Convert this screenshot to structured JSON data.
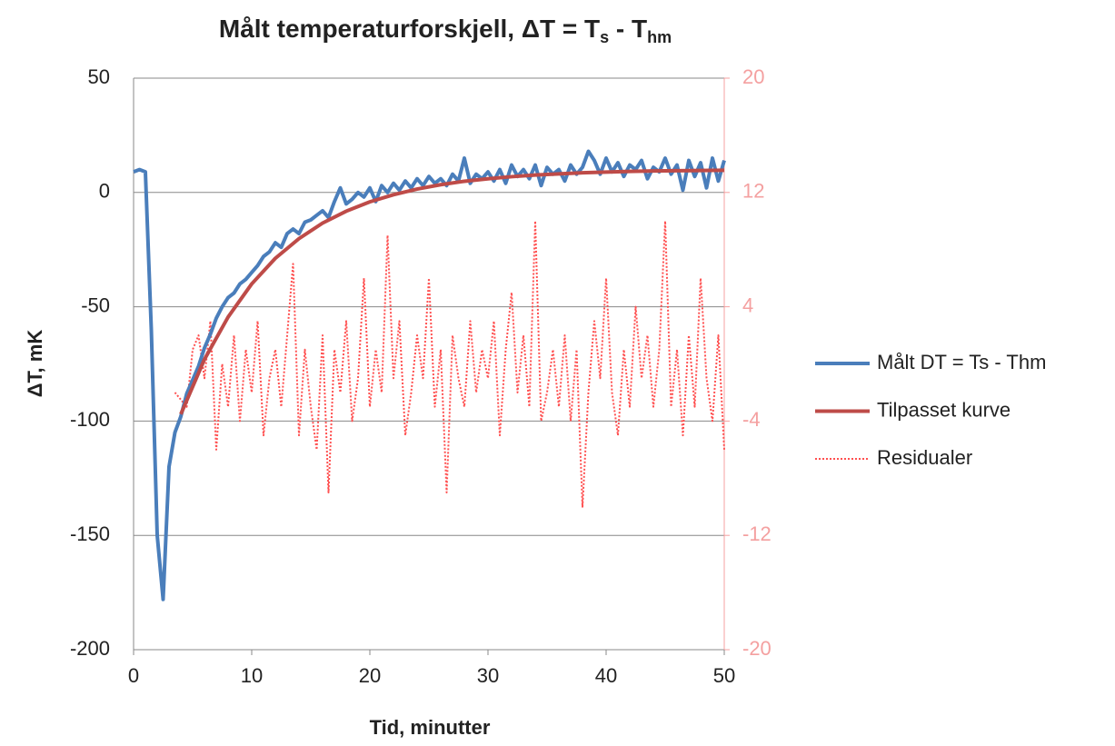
{
  "chart_data": {
    "type": "line",
    "title": [
      "Målt temperaturforskjell, ΔT = T",
      "s",
      " - T",
      "hm"
    ],
    "xlabel": "Tid, minutter",
    "ylabel": "ΔT, mK",
    "xlim": [
      0,
      50
    ],
    "xticks": [
      0,
      10,
      20,
      30,
      40,
      50
    ],
    "ylim": [
      -200,
      50
    ],
    "yticks": [
      -200,
      -150,
      -100,
      -50,
      0,
      50
    ],
    "y2lim": [
      -20,
      20
    ],
    "y2ticks": [
      -20,
      -12,
      -4,
      4,
      12,
      20
    ],
    "grid": true,
    "legend": "right",
    "series": [
      {
        "name": "Målt DT = Ts - Thm",
        "color": "#4a7ebb",
        "style": "solid",
        "x": [
          0,
          0.5,
          1,
          1.5,
          2,
          2.5,
          3,
          3.5,
          4,
          4.5,
          5,
          5.5,
          6,
          6.5,
          7,
          7.5,
          8,
          8.5,
          9,
          9.5,
          10,
          10.5,
          11,
          11.5,
          12,
          12.5,
          13,
          13.5,
          14,
          14.5,
          15,
          15.5,
          16,
          16.5,
          17,
          17.5,
          18,
          18.5,
          19,
          19.5,
          20,
          20.5,
          21,
          21.5,
          22,
          22.5,
          23,
          23.5,
          24,
          24.5,
          25,
          25.5,
          26,
          26.5,
          27,
          27.5,
          28,
          28.5,
          29,
          29.5,
          30,
          30.5,
          31,
          31.5,
          32,
          32.5,
          33,
          33.5,
          34,
          34.5,
          35,
          35.5,
          36,
          36.5,
          37,
          37.5,
          38,
          38.5,
          39,
          39.5,
          40,
          40.5,
          41,
          41.5,
          42,
          42.5,
          43,
          43.5,
          44,
          44.5,
          45,
          45.5,
          46,
          46.5,
          47,
          47.5,
          48,
          48.5,
          49,
          49.5,
          50
        ],
        "values": [
          9,
          10,
          9,
          -60,
          -150,
          -178,
          -120,
          -105,
          -98,
          -88,
          -82,
          -76,
          -68,
          -62,
          -55,
          -50,
          -46,
          -44,
          -40,
          -38,
          -35,
          -32,
          -28,
          -26,
          -22,
          -24,
          -18,
          -16,
          -18,
          -13,
          -12,
          -10,
          -8,
          -11,
          -4,
          2,
          -5,
          -3,
          0,
          -2,
          2,
          -4,
          3,
          0,
          4,
          1,
          5,
          2,
          6,
          3,
          7,
          4,
          6,
          3,
          8,
          5,
          15,
          4,
          8,
          6,
          9,
          5,
          10,
          4,
          12,
          7,
          10,
          6,
          12,
          3,
          11,
          8,
          10,
          5,
          12,
          8,
          11,
          18,
          14,
          8,
          15,
          9,
          13,
          7,
          12,
          10,
          14,
          6,
          11,
          9,
          15,
          8,
          12,
          1,
          14,
          7,
          13,
          2,
          15,
          5,
          14
        ]
      },
      {
        "name": "Tilpasset kurve",
        "color": "#be4b48",
        "style": "solid",
        "x": [
          4,
          6,
          8,
          10,
          12,
          14,
          16,
          18,
          20,
          22,
          24,
          26,
          28,
          30,
          32,
          34,
          36,
          38,
          40,
          42,
          44,
          46,
          48,
          50
        ],
        "values": [
          -97,
          -73,
          -54.5,
          -40,
          -28.8,
          -20.2,
          -13.4,
          -8.2,
          -4.1,
          -1,
          1.5,
          3.4,
          4.9,
          6,
          6.9,
          7.6,
          8.1,
          8.6,
          8.9,
          9.2,
          9.4,
          9.5,
          9.6,
          9.7
        ]
      },
      {
        "name": "Residualer",
        "color": "#ff5050",
        "style": "dotted",
        "axis": "y2",
        "x": [
          3.5,
          4,
          4.5,
          5,
          5.5,
          6,
          6.5,
          7,
          7.5,
          8,
          8.5,
          9,
          9.5,
          10,
          10.5,
          11,
          11.5,
          12,
          12.5,
          13,
          13.5,
          14,
          14.5,
          15,
          15.5,
          16,
          16.5,
          17,
          17.5,
          18,
          18.5,
          19,
          19.5,
          20,
          20.5,
          21,
          21.5,
          22,
          22.5,
          23,
          23.5,
          24,
          24.5,
          25,
          25.5,
          26,
          26.5,
          27,
          27.5,
          28,
          28.5,
          29,
          29.5,
          30,
          30.5,
          31,
          31.5,
          32,
          32.5,
          33,
          33.5,
          34,
          34.5,
          35,
          35.5,
          36,
          36.5,
          37,
          37.5,
          38,
          38.5,
          39,
          39.5,
          40,
          40.5,
          41,
          41.5,
          42,
          42.5,
          43,
          43.5,
          44,
          44.5,
          45,
          45.5,
          46,
          46.5,
          47,
          47.5,
          48,
          48.5,
          49,
          49.5,
          50
        ],
        "values": [
          -2,
          -2.5,
          -3,
          1,
          2,
          -1,
          3,
          -6,
          0,
          -3,
          2,
          -4,
          1,
          -2,
          3,
          -5,
          -1,
          1,
          -3,
          2,
          7,
          -5,
          1,
          -3,
          -6,
          2,
          -9,
          1,
          -2,
          3,
          -4,
          -1,
          6,
          -3,
          1,
          -2,
          9,
          -1,
          3,
          -5,
          -2,
          2,
          -1,
          6,
          -3,
          1,
          -9,
          2,
          -1,
          -3,
          3,
          -2,
          1,
          -1,
          3,
          -5,
          1,
          5,
          -2,
          2,
          -3,
          10,
          -4,
          -2,
          1,
          -3,
          2,
          -4,
          1,
          -10,
          -2,
          3,
          -1,
          6,
          -2,
          -5,
          1,
          -3,
          4,
          -1,
          2,
          -3,
          1,
          10,
          -3,
          1,
          -5,
          2,
          -3,
          6,
          -1,
          -4,
          2,
          -6
        ]
      }
    ]
  }
}
